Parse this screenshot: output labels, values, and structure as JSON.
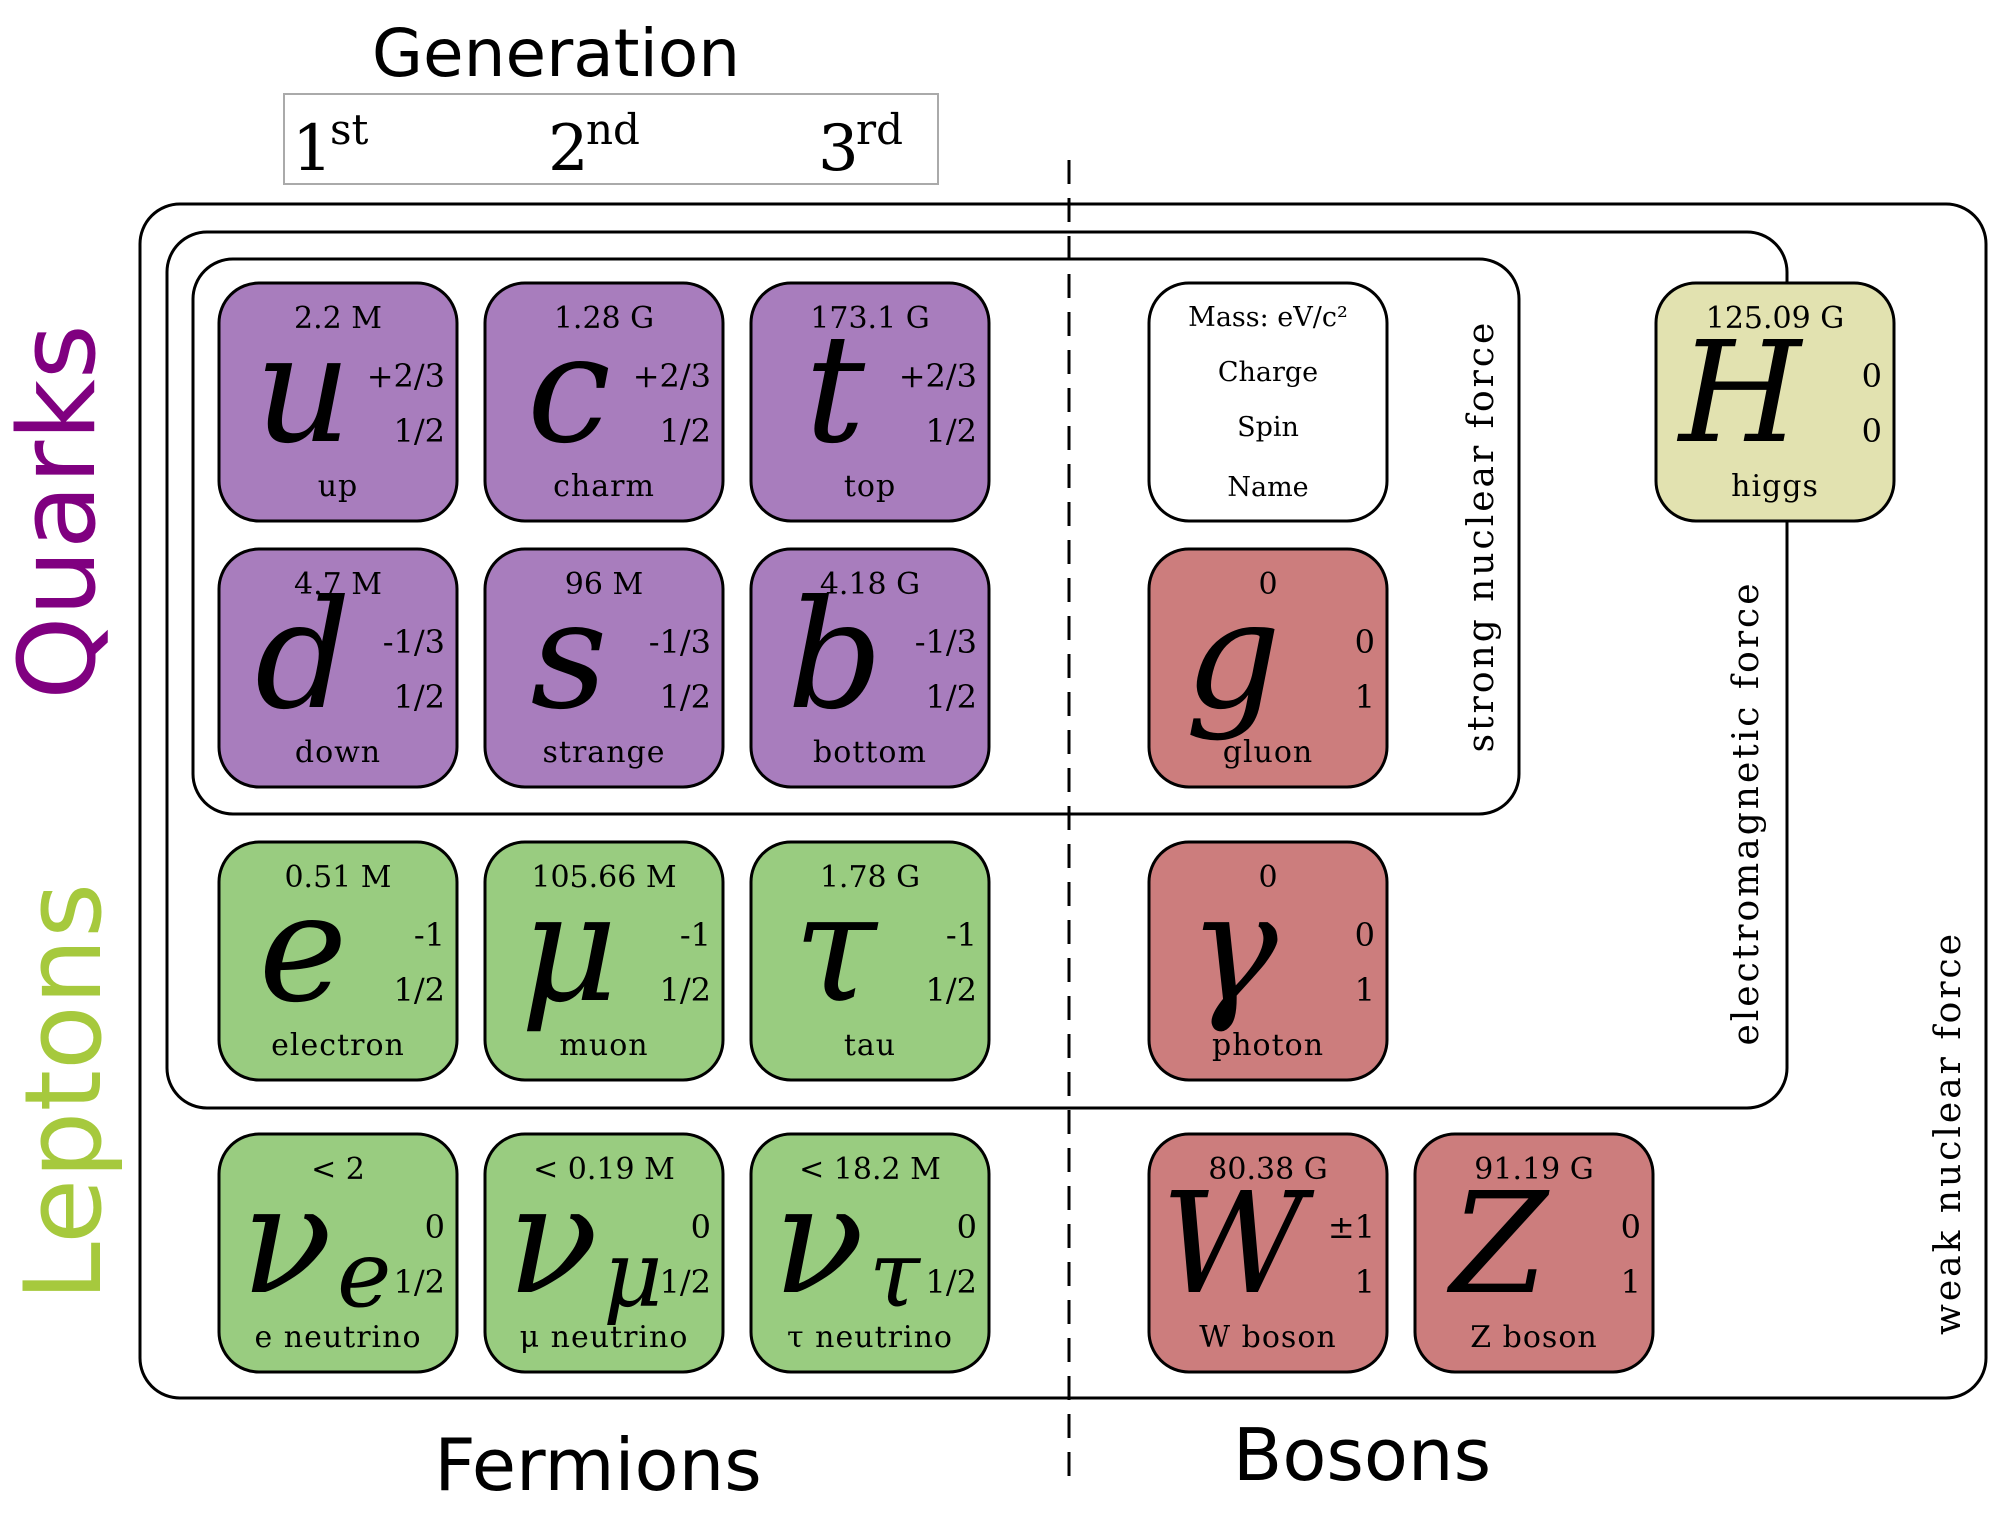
{
  "colors": {
    "quark": "#a87dbd",
    "lepton": "#99cc80",
    "gauge": "#cc7d7d",
    "higgs": "#e2e2b0",
    "key": "#ffffff",
    "quarks_label": "#800080",
    "leptons_label": "#a6c93d",
    "stroke": "#000000"
  },
  "header": {
    "generation_title": "Generation",
    "gen1": {
      "num": "1",
      "sup": "st"
    },
    "gen2": {
      "num": "2",
      "sup": "nd"
    },
    "gen3": {
      "num": "3",
      "sup": "rd"
    }
  },
  "side_labels": {
    "quarks": "Quarks",
    "leptons": "Leptons"
  },
  "bottom_labels": {
    "fermions": "Fermions",
    "bosons": "Bosons"
  },
  "forces": {
    "strong": "strong nuclear force",
    "electromagnetic": "electromagnetic force",
    "weak": "weak nuclear force"
  },
  "key": {
    "mass": "Mass:  eV/c²",
    "charge": "Charge",
    "spin": "Spin",
    "name": "Name"
  },
  "particles": [
    {
      "id": "up",
      "kind": "quark",
      "mass": "2.2 M",
      "symbol": "u",
      "sub": "",
      "charge": "+2/3",
      "spin": "1/2",
      "name": "up"
    },
    {
      "id": "charm",
      "kind": "quark",
      "mass": "1.28 G",
      "symbol": "c",
      "sub": "",
      "charge": "+2/3",
      "spin": "1/2",
      "name": "charm"
    },
    {
      "id": "top",
      "kind": "quark",
      "mass": "173.1 G",
      "symbol": "t",
      "sub": "",
      "charge": "+2/3",
      "spin": "1/2",
      "name": "top"
    },
    {
      "id": "down",
      "kind": "quark",
      "mass": "4.7 M",
      "symbol": "d",
      "sub": "",
      "charge": "-1/3",
      "spin": "1/2",
      "name": "down"
    },
    {
      "id": "strange",
      "kind": "quark",
      "mass": "96 M",
      "symbol": "s",
      "sub": "",
      "charge": "-1/3",
      "spin": "1/2",
      "name": "strange"
    },
    {
      "id": "bottom",
      "kind": "quark",
      "mass": "4.18 G",
      "symbol": "b",
      "sub": "",
      "charge": "-1/3",
      "spin": "1/2",
      "name": "bottom"
    },
    {
      "id": "electron",
      "kind": "lepton",
      "mass": "0.51 M",
      "symbol": "e",
      "sub": "",
      "charge": "-1",
      "spin": "1/2",
      "name": "electron"
    },
    {
      "id": "muon",
      "kind": "lepton",
      "mass": "105.66 M",
      "symbol": "μ",
      "sub": "",
      "charge": "-1",
      "spin": "1/2",
      "name": "muon"
    },
    {
      "id": "tau",
      "kind": "lepton",
      "mass": "1.78 G",
      "symbol": "τ",
      "sub": "",
      "charge": "-1",
      "spin": "1/2",
      "name": "tau"
    },
    {
      "id": "e-neutrino",
      "kind": "lepton",
      "mass": "< 2",
      "symbol": "ν",
      "sub": "e",
      "charge": "0",
      "spin": "1/2",
      "name": "e neutrino"
    },
    {
      "id": "mu-neutrino",
      "kind": "lepton",
      "mass": "< 0.19 M",
      "symbol": "ν",
      "sub": "μ",
      "charge": "0",
      "spin": "1/2",
      "name": "μ neutrino"
    },
    {
      "id": "tau-neutrino",
      "kind": "lepton",
      "mass": "< 18.2 M",
      "symbol": "ν",
      "sub": "τ",
      "charge": "0",
      "spin": "1/2",
      "name": "τ neutrino"
    },
    {
      "id": "gluon",
      "kind": "gauge",
      "mass": "0",
      "symbol": "g",
      "sub": "",
      "charge": "0",
      "spin": "1",
      "name": "gluon"
    },
    {
      "id": "photon",
      "kind": "gauge",
      "mass": "0",
      "symbol": "γ",
      "sub": "",
      "charge": "0",
      "spin": "1",
      "name": "photon"
    },
    {
      "id": "w-boson",
      "kind": "gauge",
      "mass": "80.38 G",
      "symbol": "W",
      "sub": "",
      "charge": "±1",
      "spin": "1",
      "name": "W boson"
    },
    {
      "id": "z-boson",
      "kind": "gauge",
      "mass": "91.19 G",
      "symbol": "Z",
      "sub": "",
      "charge": "0",
      "spin": "1",
      "name": "Z boson"
    },
    {
      "id": "higgs",
      "kind": "higgs",
      "mass": "125.09 G",
      "symbol": "H",
      "sub": "",
      "charge": "0",
      "spin": "0",
      "name": "higgs"
    }
  ]
}
